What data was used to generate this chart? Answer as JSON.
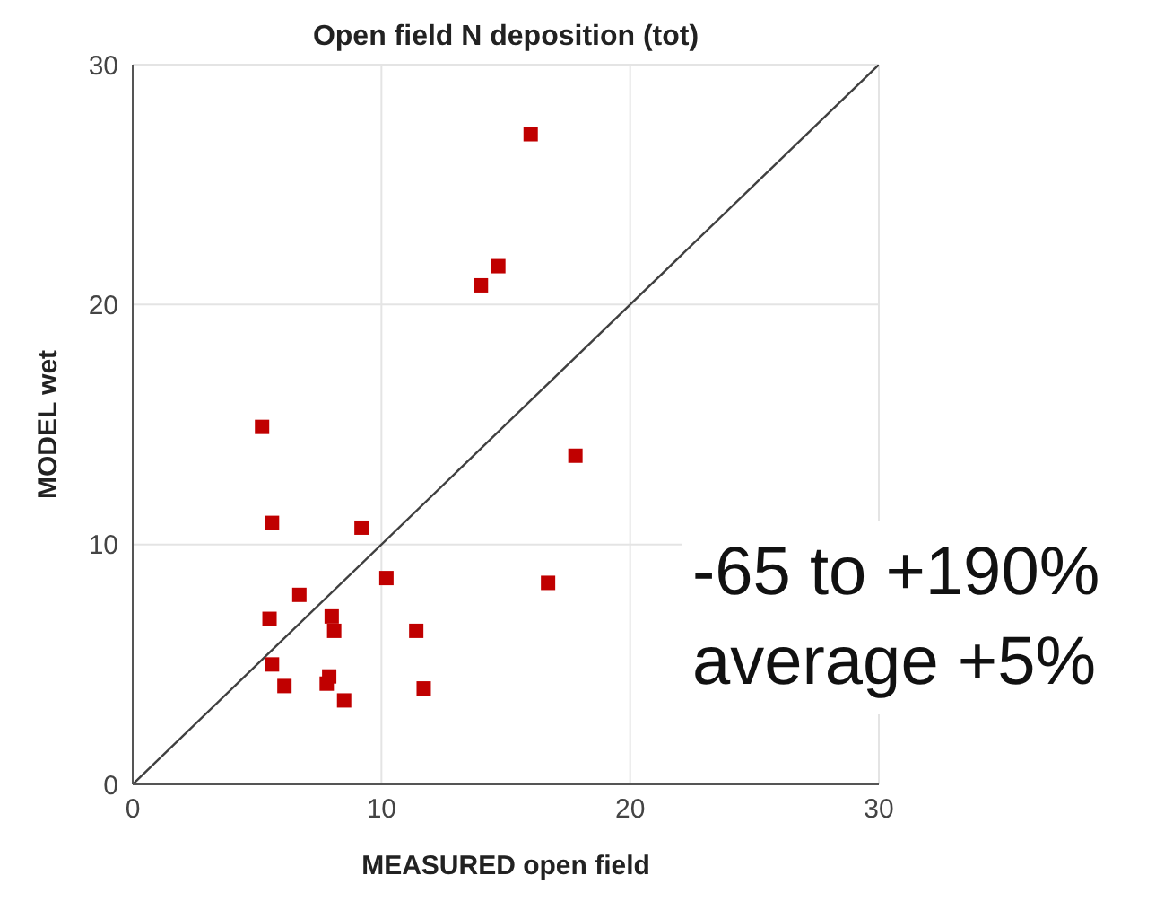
{
  "chart_data": {
    "type": "scatter",
    "title": "Open field N deposition (tot)",
    "xlabel": "MEASURED open field",
    "ylabel": "MODEL wet",
    "xlim": [
      0,
      30
    ],
    "ylim": [
      0,
      30
    ],
    "xticks": [
      0,
      10,
      20,
      30
    ],
    "yticks": [
      0,
      10,
      20,
      30
    ],
    "grid": true,
    "marker": "square",
    "series": [
      {
        "color": "#c00000",
        "x": [
          16.0,
          14.7,
          14.0,
          5.2,
          17.8,
          5.6,
          9.2,
          10.2,
          16.7,
          6.7,
          5.5,
          8.0,
          8.1,
          11.4,
          5.6,
          6.1,
          7.9,
          7.8,
          8.5,
          11.7
        ],
        "values": [
          27.1,
          21.6,
          20.8,
          14.9,
          13.7,
          10.9,
          10.7,
          8.6,
          8.4,
          7.9,
          6.9,
          7.0,
          6.4,
          6.4,
          5.0,
          4.1,
          4.5,
          4.2,
          3.5,
          4.0
        ]
      },
      {
        "type": "line",
        "color": "#404040",
        "marker": "none",
        "x": [
          0,
          30
        ],
        "values": [
          0,
          30
        ]
      }
    ],
    "annotations": [
      "-65 to +190%",
      "average +5%"
    ]
  }
}
